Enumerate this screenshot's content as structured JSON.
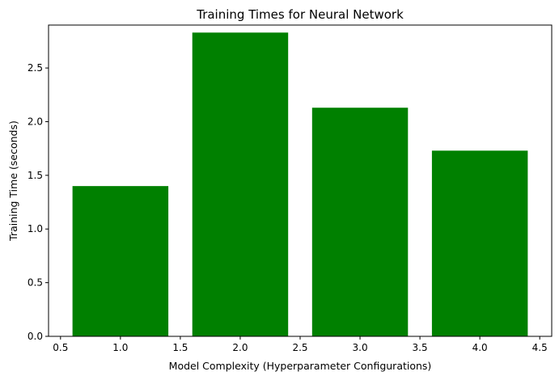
{
  "chart_data": {
    "type": "bar",
    "title": "Training Times for Neural Network",
    "xlabel": "Model Complexity (Hyperparameter Configurations)",
    "ylabel": "Training Time (seconds)",
    "x": [
      1,
      2,
      3,
      4
    ],
    "values": [
      1.4,
      2.83,
      2.13,
      1.73
    ],
    "bar_width": 0.8,
    "bar_color": "#008000",
    "xlim": [
      0.4,
      4.6
    ],
    "ylim": [
      0,
      2.9
    ],
    "xticks": [
      0.5,
      1.0,
      1.5,
      2.0,
      2.5,
      3.0,
      3.5,
      4.0,
      4.5
    ],
    "xtick_labels": [
      "0.5",
      "1.0",
      "1.5",
      "2.0",
      "2.5",
      "3.0",
      "3.5",
      "4.0",
      "4.5"
    ],
    "yticks": [
      0.0,
      0.5,
      1.0,
      1.5,
      2.0,
      2.5
    ],
    "ytick_labels": [
      "0.0",
      "0.5",
      "1.0",
      "1.5",
      "2.0",
      "2.5"
    ],
    "grid": false,
    "legend": "none"
  }
}
